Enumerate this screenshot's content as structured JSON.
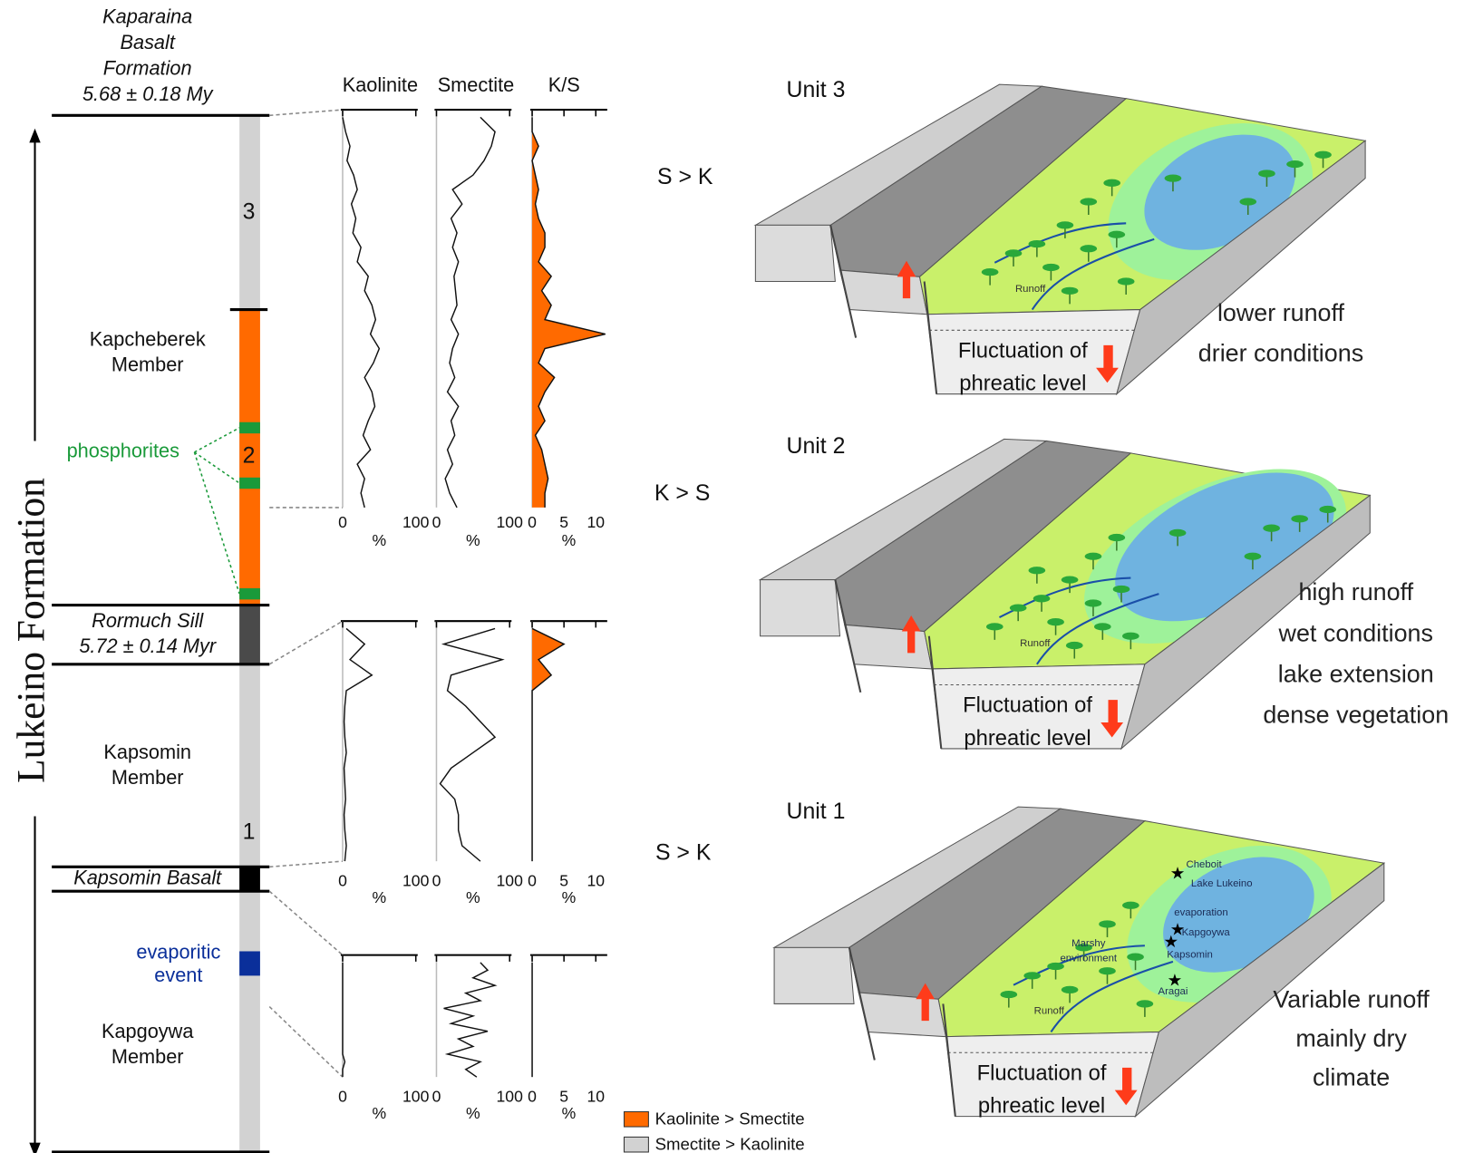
{
  "stratigraphy": {
    "formation": "Lukeino Formation",
    "top_label": [
      "Kaparaina",
      "Basalt",
      "Formation",
      "5.68 ± 0.18 My"
    ],
    "kapcheberek": [
      "Kapcheberek",
      "Member"
    ],
    "phosphorites": "phosphorites",
    "units": [
      "3",
      "2",
      "1"
    ],
    "sill": [
      "Rormuch Sill",
      "5.72 ± 0.14 Myr"
    ],
    "kapsomin": [
      "Kapsomin",
      "Member"
    ],
    "basalt": "Kapsomin Basalt",
    "evaporitic": [
      "evaporitic",
      "event"
    ],
    "kapgoywa": [
      "Kapgoywa",
      "Member"
    ]
  },
  "logs": {
    "headers": [
      "Kaolinite",
      "Smectite",
      "K/S"
    ],
    "unit": "%",
    "percent_ticks": [
      0,
      100
    ],
    "ks_ticks": [
      0,
      5,
      10
    ],
    "ks_lim": [
      0,
      11.5
    ],
    "panels": [
      {
        "kaolinite": [
          0,
          4,
          10,
          6,
          15,
          20,
          12,
          18,
          14,
          25,
          20,
          35,
          30,
          40,
          45,
          38,
          50,
          42,
          30,
          40,
          44,
          35,
          28,
          38,
          20,
          30,
          25,
          30
        ],
        "smectite": [
          60,
          80,
          75,
          65,
          50,
          22,
          35,
          20,
          28,
          22,
          30,
          24,
          26,
          28,
          20,
          30,
          22,
          18,
          25,
          15,
          30,
          20,
          25,
          15,
          22,
          12,
          18,
          28
        ],
        "ks": [
          0,
          0,
          1,
          0,
          0.5,
          1,
          0.5,
          1,
          2,
          2,
          1,
          3,
          1.5,
          3,
          2,
          11.5,
          2,
          1,
          3.5,
          2,
          1,
          2,
          0.5,
          1.5,
          2,
          2.5,
          2,
          2
        ]
      },
      {
        "kaolinite": [
          5,
          30,
          10,
          40,
          5,
          3,
          2,
          3,
          5,
          2,
          3,
          4,
          2,
          3,
          5,
          3
        ],
        "smectite": [
          80,
          10,
          90,
          20,
          15,
          40,
          60,
          80,
          50,
          20,
          5,
          25,
          30,
          30,
          35,
          60
        ],
        "ks": [
          0,
          5,
          1,
          3,
          0,
          0,
          0,
          0,
          0,
          0,
          0,
          0,
          0,
          0,
          0,
          0
        ]
      },
      {
        "kaolinite": [
          0,
          0,
          0,
          0,
          0,
          0,
          0,
          0,
          0,
          0,
          0,
          0,
          0,
          3,
          0,
          0
        ],
        "smectite": [
          60,
          70,
          50,
          80,
          40,
          60,
          10,
          50,
          20,
          70,
          30,
          50,
          15,
          60,
          40,
          55
        ],
        "ks": [
          0,
          0,
          0,
          0,
          0,
          0,
          0,
          0,
          0,
          0,
          0,
          0,
          0,
          0,
          0,
          0
        ]
      }
    ]
  },
  "legend": [
    "Kaolinite > Smectite",
    "Smectite > Kaolinite"
  ],
  "blocks": [
    {
      "title": "Unit 3",
      "ratio": "S > K",
      "caption": [
        "lower runoff",
        "drier conditions"
      ],
      "runoff": "Runoff",
      "fluctuation": [
        "Fluctuation of",
        "phreatic level"
      ]
    },
    {
      "title": "Unit 2",
      "ratio": "K > S",
      "caption": [
        "high runoff",
        "wet conditions",
        "lake extension",
        "dense vegetation"
      ],
      "runoff": "Runoff",
      "fluctuation": [
        "Fluctuation of",
        "phreatic level"
      ]
    },
    {
      "title": "Unit 1",
      "ratio": "S > K",
      "caption": [
        "Variable runoff",
        "mainly dry",
        "climate"
      ],
      "runoff": "Runoff",
      "fluctuation": [
        "Fluctuation of",
        "phreatic level"
      ],
      "places": [
        "Cheboit",
        "Lake Lukeino",
        "evaporation",
        "Kapgoywa",
        "Marshy",
        "environment",
        "Kapsomin",
        "Aragai"
      ]
    }
  ]
}
